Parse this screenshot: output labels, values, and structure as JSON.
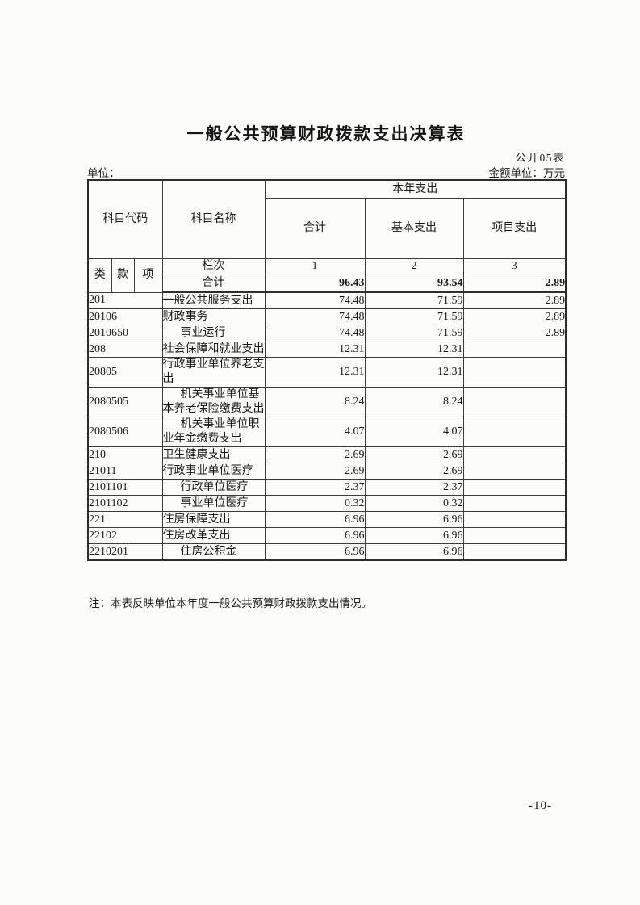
{
  "page": {
    "title": "一般公共预算财政拨款支出决算表",
    "form_code": "公开05表",
    "unit_label": "单位：",
    "amount_unit_label": "金额单位：万元",
    "note": "注：本表反映单位本年度一般公共预算财政拨款支出情况。",
    "page_number": "-10-"
  },
  "table": {
    "headers": {
      "subject_code": "科目代码",
      "subject_name": "科目名称",
      "current_year_expenditure": "本年支出",
      "total": "合计",
      "basic_expenditure": "基本支出",
      "project_expenditure": "项目支出",
      "class": "类",
      "section": "款",
      "item": "项",
      "column_index_label": "栏次",
      "column_indexes": [
        "1",
        "2",
        "3"
      ]
    },
    "total_row": {
      "label": "合计",
      "total": "96.43",
      "basic": "93.54",
      "project": "2.89"
    },
    "rows": [
      {
        "code": "201",
        "name": "一般公共服务支出",
        "indent": 0,
        "total": "74.48",
        "basic": "71.59",
        "project": "2.89"
      },
      {
        "code": "20106",
        "name": "财政事务",
        "indent": 0,
        "total": "74.48",
        "basic": "71.59",
        "project": "2.89"
      },
      {
        "code": "2010650",
        "name": "事业运行",
        "indent": 1,
        "total": "74.48",
        "basic": "71.59",
        "project": "2.89"
      },
      {
        "code": "208",
        "name": "社会保障和就业支出",
        "indent": 0,
        "total": "12.31",
        "basic": "12.31",
        "project": ""
      },
      {
        "code": "20805",
        "name": "行政事业单位养老支出",
        "indent": 0,
        "total": "12.31",
        "basic": "12.31",
        "project": ""
      },
      {
        "code": "2080505",
        "name": "机关事业单位基本养老保险缴费支出",
        "indent": 1,
        "total": "8.24",
        "basic": "8.24",
        "project": ""
      },
      {
        "code": "2080506",
        "name": "机关事业单位职业年金缴费支出",
        "indent": 1,
        "total": "4.07",
        "basic": "4.07",
        "project": ""
      },
      {
        "code": "210",
        "name": "卫生健康支出",
        "indent": 0,
        "total": "2.69",
        "basic": "2.69",
        "project": ""
      },
      {
        "code": "21011",
        "name": "行政事业单位医疗",
        "indent": 0,
        "total": "2.69",
        "basic": "2.69",
        "project": ""
      },
      {
        "code": "2101101",
        "name": "行政单位医疗",
        "indent": 1,
        "total": "2.37",
        "basic": "2.37",
        "project": ""
      },
      {
        "code": "2101102",
        "name": "事业单位医疗",
        "indent": 1,
        "total": "0.32",
        "basic": "0.32",
        "project": ""
      },
      {
        "code": "221",
        "name": "住房保障支出",
        "indent": 0,
        "total": "6.96",
        "basic": "6.96",
        "project": ""
      },
      {
        "code": "22102",
        "name": "住房改革支出",
        "indent": 0,
        "total": "6.96",
        "basic": "6.96",
        "project": ""
      },
      {
        "code": "2210201",
        "name": "住房公积金",
        "indent": 1,
        "total": "6.96",
        "basic": "6.96",
        "project": ""
      }
    ]
  }
}
